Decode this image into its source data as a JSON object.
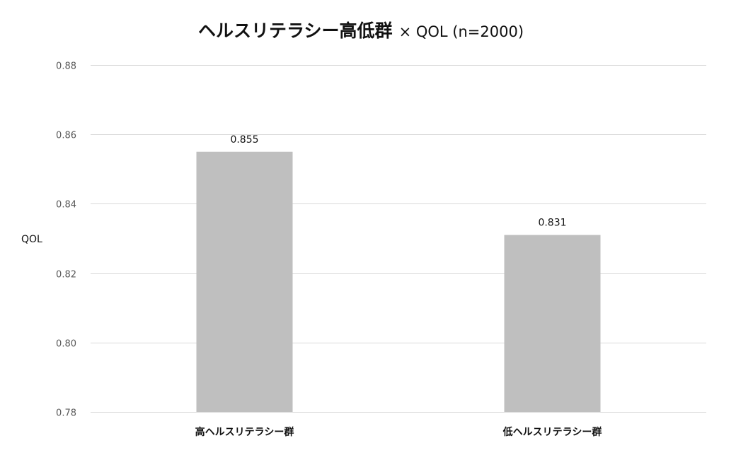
{
  "chart_data": {
    "type": "bar",
    "title": "ヘルスリテラシー高低群",
    "title_suffix": "× QOL (n=2000)",
    "xlabel": "",
    "ylabel": "QOL",
    "categories": [
      "高ヘルスリテラシー群",
      "低ヘルスリテラシー群"
    ],
    "values": [
      0.855,
      0.831
    ],
    "data_labels": [
      "0.855",
      "0.831"
    ],
    "ylim": [
      0.78,
      0.88
    ],
    "yticks": [
      0.78,
      0.8,
      0.82,
      0.84,
      0.86,
      0.88
    ],
    "ytick_labels": [
      "0.78",
      "0.80",
      "0.82",
      "0.84",
      "0.86",
      "0.88"
    ],
    "grid": true,
    "legend": "none",
    "colors": {
      "bar": "#bfbfbf",
      "grid": "#d9d9d9",
      "tick_text": "#595959",
      "text": "#111111"
    }
  }
}
